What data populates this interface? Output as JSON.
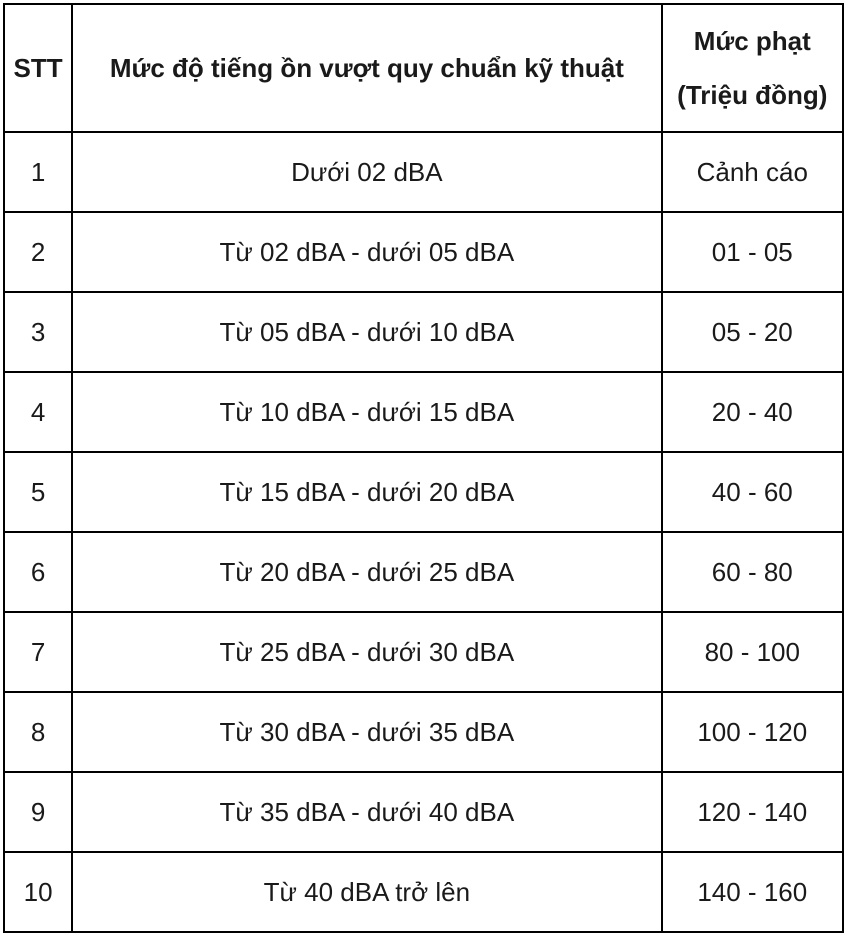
{
  "table": {
    "headers": {
      "stt": "STT",
      "level": "Mức độ tiếng ồn vượt quy chuẩn kỹ thuật",
      "fine_line1": "Mức phạt",
      "fine_line2": "(Triệu đồng)"
    },
    "rows": [
      {
        "stt": "1",
        "level": "Dưới 02 dBA",
        "fine": "Cảnh cáo"
      },
      {
        "stt": "2",
        "level": "Từ 02 dBA - dưới 05 dBA",
        "fine": "01 - 05"
      },
      {
        "stt": "3",
        "level": "Từ 05 dBA - dưới 10 dBA",
        "fine": "05 - 20"
      },
      {
        "stt": "4",
        "level": "Từ 10 dBA - dưới 15 dBA",
        "fine": "20 - 40"
      },
      {
        "stt": "5",
        "level": "Từ 15 dBA - dưới 20 dBA",
        "fine": "40 - 60"
      },
      {
        "stt": "6",
        "level": "Từ 20 dBA - dưới 25 dBA",
        "fine": "60 - 80"
      },
      {
        "stt": "7",
        "level": "Từ 25 dBA - dưới 30 dBA",
        "fine": "80 - 100"
      },
      {
        "stt": "8",
        "level": "Từ 30 dBA - dưới 35 dBA",
        "fine": "100 - 120"
      },
      {
        "stt": "9",
        "level": "Từ 35 dBA - dưới 40 dBA",
        "fine": "120 - 140"
      },
      {
        "stt": "10",
        "level": "Từ 40 dBA trở lên",
        "fine": "140 - 160"
      }
    ]
  },
  "colors": {
    "border": "#000000",
    "text": "#1a1a1a",
    "background": "#ffffff"
  }
}
